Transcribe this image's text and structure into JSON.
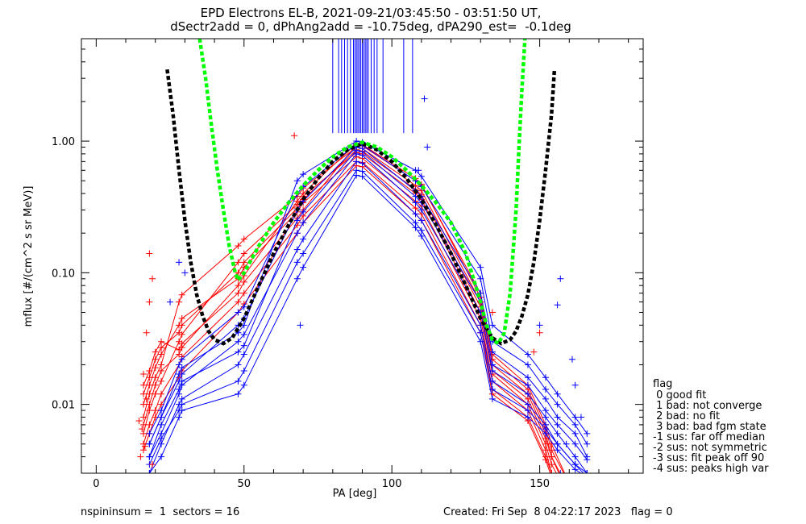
{
  "chart_data": {
    "type": "line",
    "title": "EPD Electrons EL-B, 2021-09-21/03:45:50 - 03:51:50 UT,",
    "subtitle": "dSectr2add = 0, dPhAng2add = -10.75deg, dPA290_est=  -0.1deg",
    "xlabel": "PA [deg]",
    "ylabel": "mflux [#/(cm^2 s sr MeV)]",
    "xlim": [
      -5,
      185
    ],
    "ylim": [
      0.003,
      6.0
    ],
    "yscale": "log",
    "x_ticks": [
      "0",
      "50",
      "100",
      "150"
    ],
    "y_ticks": [
      "0.01",
      "0.10",
      "1.00"
    ],
    "grid": false,
    "fits": [
      {
        "color": "#000000",
        "x": [
          24,
          26,
          28,
          30,
          32,
          34,
          36,
          38,
          40,
          43,
          46,
          50,
          55,
          60,
          65,
          70,
          75,
          80,
          85,
          90,
          95,
          100,
          105,
          110,
          115,
          120,
          125,
          130,
          134,
          137,
          140,
          142,
          144,
          146,
          148,
          150,
          152,
          154,
          155
        ],
        "y": [
          3.5,
          1.6,
          0.6,
          0.25,
          0.12,
          0.068,
          0.047,
          0.036,
          0.031,
          0.029,
          0.032,
          0.045,
          0.08,
          0.14,
          0.23,
          0.36,
          0.52,
          0.7,
          0.86,
          0.96,
          0.86,
          0.7,
          0.52,
          0.36,
          0.23,
          0.14,
          0.08,
          0.045,
          0.032,
          0.029,
          0.031,
          0.036,
          0.047,
          0.068,
          0.12,
          0.25,
          0.6,
          1.6,
          3.5
        ]
      },
      {
        "color": "#00ff00",
        "x": [
          35,
          37,
          39,
          41,
          43,
          45,
          47,
          48,
          50,
          55,
          60,
          65,
          70,
          75,
          80,
          85,
          90,
          95,
          100,
          105,
          110,
          115,
          120,
          125,
          130,
          132,
          134,
          136,
          138,
          140,
          142,
          143,
          144,
          145
        ],
        "y": [
          6.0,
          3.0,
          1.3,
          0.6,
          0.3,
          0.16,
          0.1,
          0.088,
          0.1,
          0.16,
          0.24,
          0.34,
          0.46,
          0.6,
          0.76,
          0.9,
          0.98,
          0.9,
          0.76,
          0.6,
          0.46,
          0.34,
          0.24,
          0.14,
          0.06,
          0.04,
          0.031,
          0.029,
          0.035,
          0.07,
          0.3,
          0.9,
          2.5,
          6.0
        ]
      }
    ],
    "series": [
      {
        "color": "#ff0000",
        "x": [
          16,
          18,
          20,
          22,
          28,
          29,
          48,
          50,
          68,
          70,
          88,
          90,
          108,
          110,
          130,
          134,
          146,
          152,
          154,
          160
        ],
        "traces": [
          [
            0.008,
            0.012,
            0.016,
            0.02,
            0.06,
            0.068,
            0.16,
            0.18,
            0.38,
            0.44,
            0.9,
            0.88,
            0.46,
            0.42,
            0.06,
            0.02,
            0.012,
            0.006,
            0.004,
            0.002
          ],
          [
            0.006,
            0.009,
            0.012,
            0.015,
            0.03,
            0.034,
            0.12,
            0.14,
            0.33,
            0.38,
            0.82,
            0.8,
            0.4,
            0.36,
            0.05,
            0.017,
            0.01,
            0.005,
            0.0035,
            0.002
          ],
          [
            0.01,
            0.014,
            0.019,
            0.024,
            0.04,
            0.045,
            0.09,
            0.11,
            0.29,
            0.34,
            0.76,
            0.74,
            0.35,
            0.32,
            0.045,
            0.015,
            0.009,
            0.0045,
            0.003,
            0.002
          ],
          [
            0.014,
            0.018,
            0.025,
            0.03,
            0.026,
            0.029,
            0.07,
            0.085,
            0.26,
            0.3,
            0.94,
            0.92,
            0.5,
            0.46,
            0.07,
            0.024,
            0.014,
            0.007,
            0.005,
            0.0025
          ],
          [
            0.005,
            0.007,
            0.009,
            0.012,
            0.02,
            0.023,
            0.06,
            0.07,
            0.23,
            0.27,
            0.7,
            0.69,
            0.31,
            0.28,
            0.04,
            0.013,
            0.008,
            0.004,
            0.003,
            0.002
          ],
          [
            0.0045,
            0.006,
            0.008,
            0.01,
            0.016,
            0.018,
            0.05,
            0.058,
            0.2,
            0.24,
            0.65,
            0.64,
            0.28,
            0.25,
            0.035,
            0.012,
            0.0075,
            0.0038,
            0.0028,
            0.0018
          ],
          [
            0.012,
            0.016,
            0.022,
            0.027,
            0.035,
            0.04,
            0.1,
            0.12,
            0.31,
            0.36,
            0.86,
            0.84,
            0.43,
            0.39,
            0.055,
            0.018,
            0.011,
            0.0055,
            0.004,
            0.0022
          ],
          [
            0.007,
            0.01,
            0.014,
            0.018,
            0.024,
            0.027,
            0.08,
            0.095,
            0.35,
            0.4,
            0.96,
            0.94,
            0.52,
            0.47,
            0.065,
            0.022,
            0.013,
            0.0065,
            0.0045,
            0.0025
          ]
        ]
      },
      {
        "color": "#0000ff",
        "x": [
          18,
          22,
          28,
          29,
          48,
          50,
          68,
          70,
          88,
          90,
          108,
          110,
          130,
          134,
          146,
          152,
          156,
          162,
          166
        ],
        "traces": [
          [
            0.004,
            0.006,
            0.012,
            0.014,
            0.03,
            0.034,
            0.2,
            0.24,
            0.8,
            0.78,
            0.34,
            0.3,
            0.05,
            0.018,
            0.012,
            0.008,
            0.006,
            0.004,
            0.003
          ],
          [
            0.003,
            0.005,
            0.01,
            0.011,
            0.02,
            0.024,
            0.15,
            0.18,
            0.7,
            0.68,
            0.28,
            0.25,
            0.04,
            0.015,
            0.01,
            0.007,
            0.005,
            0.0035,
            0.0028
          ],
          [
            0.005,
            0.008,
            0.015,
            0.017,
            0.04,
            0.045,
            0.3,
            0.35,
            0.9,
            0.88,
            0.42,
            0.38,
            0.07,
            0.025,
            0.016,
            0.011,
            0.008,
            0.006,
            0.004
          ],
          [
            0.0035,
            0.0055,
            0.009,
            0.01,
            0.015,
            0.018,
            0.12,
            0.14,
            0.6,
            0.59,
            0.24,
            0.21,
            0.035,
            0.013,
            0.009,
            0.0065,
            0.005,
            0.0035,
            0.003
          ],
          [
            0.006,
            0.009,
            0.02,
            0.022,
            0.05,
            0.055,
            0.4,
            0.45,
            0.95,
            0.93,
            0.5,
            0.45,
            0.09,
            0.03,
            0.02,
            0.013,
            0.01,
            0.007,
            0.005
          ],
          [
            0.004,
            0.007,
            0.013,
            0.015,
            0.025,
            0.028,
            0.25,
            0.29,
            0.85,
            0.83,
            0.38,
            0.34,
            0.06,
            0.02,
            0.014,
            0.009,
            0.007,
            0.005,
            0.0038
          ],
          [
            0.003,
            0.004,
            0.008,
            0.009,
            0.012,
            0.014,
            0.09,
            0.11,
            0.55,
            0.54,
            0.22,
            0.19,
            0.03,
            0.011,
            0.008,
            0.006,
            0.0045,
            0.0032,
            0.0028
          ],
          [
            0.005,
            0.008,
            0.017,
            0.019,
            0.035,
            0.04,
            0.5,
            0.56,
            1.0,
            0.98,
            0.6,
            0.54,
            0.11,
            0.04,
            0.024,
            0.016,
            0.012,
            0.008,
            0.006
          ]
        ]
      }
    ],
    "spikes": {
      "color": "#0000ff",
      "y_base": 1.15,
      "x": [
        80,
        82,
        83,
        84,
        85,
        86,
        87,
        87.5,
        88,
        88.5,
        89,
        89.5,
        90,
        90.5,
        91,
        91.5,
        92,
        93,
        94,
        95,
        97,
        104,
        107
      ]
    },
    "scatter": [
      {
        "color": "#ff0000",
        "points": [
          [
            18,
            0.14
          ],
          [
            19,
            0.09
          ],
          [
            18,
            0.06
          ],
          [
            17,
            0.035
          ],
          [
            16,
            0.017
          ],
          [
            17,
            0.011
          ],
          [
            15.5,
            0.0065
          ],
          [
            16.5,
            0.0048
          ],
          [
            15,
            0.004
          ],
          [
            14.5,
            0.0075
          ],
          [
            19,
            0.0035
          ],
          [
            67,
            1.1
          ],
          [
            130,
            0.06
          ],
          [
            134,
            0.05
          ],
          [
            150,
            0.035
          ],
          [
            148,
            0.025
          ]
        ]
      },
      {
        "color": "#0000ff",
        "points": [
          [
            28,
            0.12
          ],
          [
            30,
            0.1
          ],
          [
            25,
            0.06
          ],
          [
            157,
            0.09
          ],
          [
            156,
            0.057
          ],
          [
            161,
            0.022
          ],
          [
            162,
            0.014
          ],
          [
            164,
            0.008
          ],
          [
            159,
            0.005
          ],
          [
            157,
            0.003
          ],
          [
            111,
            2.1
          ],
          [
            112,
            0.9
          ],
          [
            109,
            0.6
          ],
          [
            69,
            0.04
          ],
          [
            150,
            0.04
          ]
        ]
      }
    ]
  },
  "legend": {
    "header": "flag",
    "items": [
      " 0 good fit",
      " 1 bad: not converge",
      " 2 bad: no fit",
      " 3 bad: bad fgm state",
      "-1 sus: far off median",
      "-2 sus: not symmetric",
      "-3 sus: fit peak off 90",
      "-4 sus: peaks high var"
    ]
  },
  "footer": {
    "left": "nspininsum =  1  sectors = 16",
    "right": "Created: Fri Sep  8 04:22:17 2023   flag = 0"
  }
}
